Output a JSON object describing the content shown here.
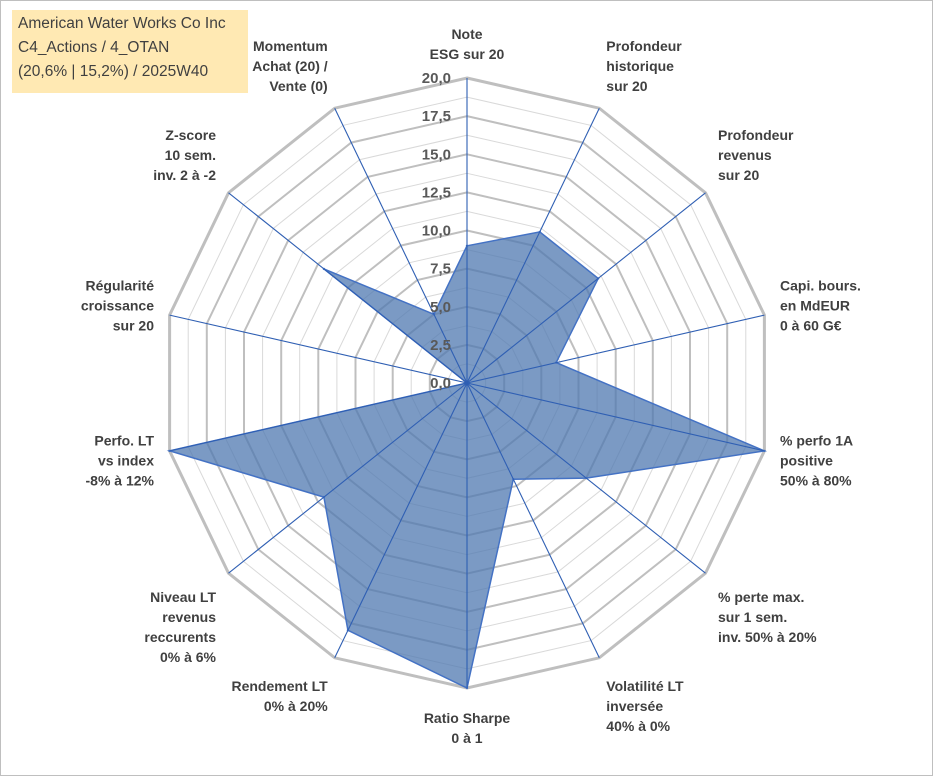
{
  "title": {
    "line1": "American Water Works Co Inc",
    "line2": "C4_Actions / 4_OTAN",
    "line3": "(20,6% | 15,2%) / 2025W40"
  },
  "chart_data": {
    "type": "radar",
    "title": "American Water Works Co Inc",
    "rmin": 0,
    "rmax": 20,
    "ticks": [
      "0,0",
      "2,5",
      "5,0",
      "7,5",
      "10,0",
      "12,5",
      "15,0",
      "17,5",
      "20,0"
    ],
    "grid": true,
    "axes": [
      {
        "label": [
          "Note",
          "ESG sur 20"
        ],
        "value": 9
      },
      {
        "label": [
          "Profondeur",
          "historique",
          "sur 20"
        ],
        "value": 11
      },
      {
        "label": [
          "Profondeur",
          "revenus",
          "sur 20"
        ],
        "value": 11
      },
      {
        "label": [
          "Capi. bours.",
          "en MdEUR",
          "0 à 60 G€"
        ],
        "value": 6
      },
      {
        "label": [
          "% perfo 1A",
          "positive",
          "50% à 80%"
        ],
        "value": 20
      },
      {
        "label": [
          "% perte max.",
          "sur 1 sem.",
          "inv. 50% à 20%"
        ],
        "value": 10
      },
      {
        "label": [
          "Volatilité LT",
          "inversée",
          "40% à 0%"
        ],
        "value": 7
      },
      {
        "label": [
          "Ratio Sharpe",
          "0 à 1"
        ],
        "value": 20
      },
      {
        "label": [
          "Rendement LT",
          "0% à 20%"
        ],
        "value": 18
      },
      {
        "label": [
          "Niveau LT",
          "revenus",
          "reccurents",
          "0% à 6%"
        ],
        "value": 12
      },
      {
        "label": [
          "Perfo. LT",
          "vs index",
          "-8% à 12%"
        ],
        "value": 20
      },
      {
        "label": [
          "Régularité",
          "croissance",
          "sur 20"
        ],
        "value": 0
      },
      {
        "label": [
          "Z-score",
          "10 sem.",
          "inv. 2 à -2"
        ],
        "value": 12
      },
      {
        "label": [
          "Momentum",
          "Achat (20) /",
          "Vente (0)"
        ],
        "value": 5
      }
    ],
    "colors": {
      "fill": "#4f78b0",
      "stroke": "#4472c4",
      "spoke": "#2f5fb3",
      "grid_major": "#bfbfbf",
      "grid_minor": "#d9d9d9"
    }
  }
}
